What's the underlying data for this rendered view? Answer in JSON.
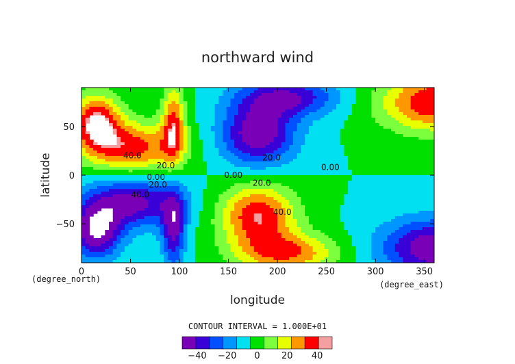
{
  "chart_data": {
    "type": "heatmap",
    "title": "northward wind",
    "xlabel": "longitude",
    "ylabel": "latitude",
    "x_unit": "(degree_east)",
    "y_unit": "(degree_north)",
    "xlim": [
      0,
      360
    ],
    "ylim": [
      -90,
      90
    ],
    "x_ticks": [
      0,
      50,
      100,
      150,
      200,
      250,
      300,
      350
    ],
    "y_ticks": [
      -50,
      0,
      50
    ],
    "contour_interval_text": "CONTOUR INTERVAL = 1.000E+01",
    "contour_labels": [
      {
        "text": "40.0",
        "lon": 52,
        "lat": 20
      },
      {
        "text": "20.0",
        "lon": 86,
        "lat": 10
      },
      {
        "text": "0.00",
        "lon": 76,
        "lat": -2
      },
      {
        "text": "20.0",
        "lon": 78,
        "lat": -10
      },
      {
        "text": "40.0",
        "lon": 60,
        "lat": -20
      },
      {
        "text": "0.00",
        "lon": 155,
        "lat": 0
      },
      {
        "text": "20.0",
        "lon": 184,
        "lat": -8
      },
      {
        "text": "20.0",
        "lon": 194,
        "lat": 18
      },
      {
        "text": "40.0",
        "lon": 205,
        "lat": -38
      },
      {
        "text": "0.00",
        "lon": 254,
        "lat": 8
      }
    ],
    "colorbar": {
      "levels": [
        -50,
        -40,
        -30,
        -20,
        -10,
        0,
        10,
        20,
        30,
        40,
        50
      ],
      "tick_labels": [
        "-40",
        "-20",
        "0",
        "20",
        "40"
      ],
      "tick_values": [
        -40,
        -20,
        0,
        20,
        40
      ],
      "colors": [
        "#7a00b8",
        "#3a00d8",
        "#0050ff",
        "#0096ff",
        "#00e0f0",
        "#00e000",
        "#7cff3c",
        "#e8ff00",
        "#ff9800",
        "#ff0000",
        "#f4a0a0"
      ]
    },
    "features": [
      {
        "lon": 52,
        "lat": 28,
        "amp": 45,
        "rlon": 48,
        "rlat": 26
      },
      {
        "lon": 15,
        "lat": 55,
        "amp": 52,
        "rlon": 25,
        "rlat": 28
      },
      {
        "lon": 94,
        "lat": 52,
        "amp": 42,
        "rlon": 12,
        "rlat": 40
      },
      {
        "lon": 52,
        "lat": -28,
        "amp": -45,
        "rlon": 48,
        "rlat": 26
      },
      {
        "lon": 15,
        "lat": -58,
        "amp": -52,
        "rlon": 25,
        "rlat": 28
      },
      {
        "lon": 94,
        "lat": -55,
        "amp": -42,
        "rlon": 12,
        "rlat": 40
      },
      {
        "lon": 180,
        "lat": 42,
        "amp": -50,
        "rlon": 38,
        "rlat": 32
      },
      {
        "lon": 210,
        "lat": 80,
        "amp": -40,
        "rlon": 50,
        "rlat": 20
      },
      {
        "lon": 180,
        "lat": -42,
        "amp": 50,
        "rlon": 38,
        "rlat": 32
      },
      {
        "lon": 210,
        "lat": -80,
        "amp": 40,
        "rlon": 50,
        "rlat": 20
      },
      {
        "lon": 360,
        "lat": 75,
        "amp": 50,
        "rlon": 55,
        "rlat": 30
      },
      {
        "lon": 360,
        "lat": -75,
        "amp": -50,
        "rlon": 55,
        "rlat": 30
      }
    ]
  }
}
